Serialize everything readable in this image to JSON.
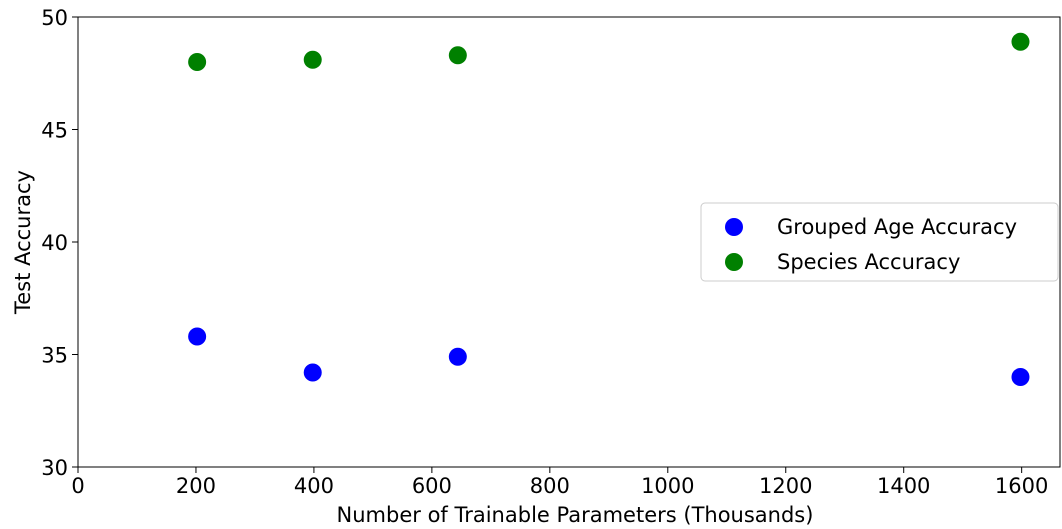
{
  "chart_data": {
    "type": "scatter",
    "xlabel": "Number of Trainable Parameters (Thousands)",
    "ylabel": "Test Accuracy",
    "xlim": [
      0,
      1665
    ],
    "ylim": [
      30,
      50
    ],
    "xticks": [
      0,
      200,
      400,
      600,
      800,
      1000,
      1200,
      1400,
      1600
    ],
    "yticks": [
      30,
      35,
      40,
      45,
      50
    ],
    "legend": "center right",
    "series": [
      {
        "name": "Grouped Age Accuracy",
        "color": "#0000ff",
        "x": [
          202,
          398,
          644,
          1598
        ],
        "values": [
          35.8,
          34.2,
          34.9,
          34.0
        ]
      },
      {
        "name": "Species Accuracy",
        "color": "#008000",
        "x": [
          202,
          398,
          644,
          1598
        ],
        "values": [
          48.0,
          48.1,
          48.3,
          48.9
        ]
      }
    ]
  }
}
